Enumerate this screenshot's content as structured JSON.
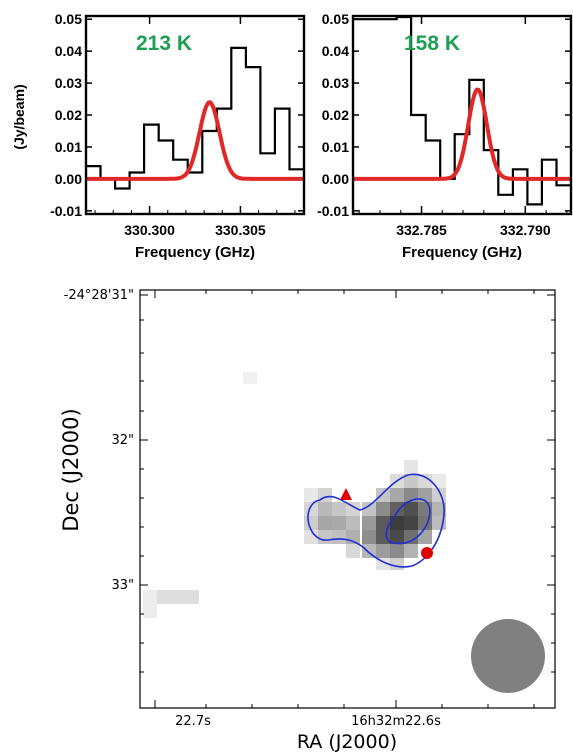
{
  "chart_data": [
    {
      "type": "line",
      "panel": "spectrum-left",
      "annotation": "213 K",
      "ylabel": "(Jy/beam)",
      "xlabel": "Frequency (GHz)",
      "xlim": [
        330.2965,
        330.3085
      ],
      "ylim": [
        -0.011,
        0.051
      ],
      "x_ticks": [
        "330.300",
        "330.305"
      ],
      "x_tick_values": [
        330.3,
        330.305
      ],
      "y_ticks": [
        "-0.01",
        "0.00",
        "0.01",
        "0.02",
        "0.03",
        "0.04",
        "0.05"
      ],
      "y_tick_values": [
        -0.01,
        0.0,
        0.01,
        0.02,
        0.03,
        0.04,
        0.05
      ],
      "series": [
        {
          "role": "observed-spectrum-steps",
          "color": "#000000",
          "x": [
            330.2965,
            330.2973,
            330.2981,
            330.2989,
            330.2997,
            330.3005,
            330.3013,
            330.3021,
            330.3029,
            330.3037,
            330.3045,
            330.3053,
            330.3061,
            330.3069,
            330.3077,
            330.3085
          ],
          "y": [
            0.004,
            0.0,
            -0.003,
            0.002,
            0.017,
            0.012,
            0.006,
            0.002,
            0.015,
            0.022,
            0.041,
            0.035,
            0.008,
            0.022,
            0.003,
            0.002
          ]
        },
        {
          "role": "gaussian-model",
          "color": "#e02828",
          "amplitude": 0.024,
          "center": 330.3033,
          "sigma": 0.00055
        }
      ]
    },
    {
      "type": "line",
      "panel": "spectrum-right",
      "annotation": "158 K",
      "xlabel": "Frequency (GHz)",
      "xlim": [
        332.7817,
        332.7922
      ],
      "ylim": [
        -0.011,
        0.051
      ],
      "x_ticks": [
        "332.785",
        "332.790"
      ],
      "x_tick_values": [
        332.785,
        332.79
      ],
      "y_ticks": [
        "-0.01",
        "0.00",
        "0.01",
        "0.02",
        "0.03",
        "0.04",
        "0.05"
      ],
      "y_tick_values": [
        -0.01,
        0.0,
        0.01,
        0.02,
        0.03,
        0.04,
        0.05
      ],
      "series": [
        {
          "role": "observed-spectrum-steps",
          "color": "#000000",
          "x": [
            332.7817,
            332.7824,
            332.7831,
            332.7838,
            332.7845,
            332.7852,
            332.7859,
            332.7866,
            332.7873,
            332.788,
            332.7887,
            332.7894,
            332.7901,
            332.7908,
            332.7915,
            332.7922
          ],
          "y": [
            0.05,
            0.05,
            0.05,
            0.051,
            0.02,
            0.012,
            0.0,
            0.014,
            0.031,
            0.009,
            -0.005,
            0.003,
            -0.008,
            0.006,
            -0.002,
            0.004
          ]
        },
        {
          "role": "gaussian-model",
          "color": "#e02828",
          "amplitude": 0.028,
          "center": 332.7877,
          "sigma": 0.00045
        }
      ]
    },
    {
      "type": "heatmap",
      "panel": "map",
      "xlabel": "RA (J2000)",
      "ylabel": "Dec (J2000)",
      "x_ticks": [
        "22.7s",
        "16h32m22.6s"
      ],
      "y_ticks": [
        "-24°28'31\"",
        "32\"",
        "33\""
      ],
      "markers": [
        {
          "shape": "triangle",
          "color": "#e00000"
        },
        {
          "shape": "circle",
          "color": "#e00000"
        }
      ],
      "contour_color": "#1d2fd6",
      "beam_color": "#808080"
    }
  ]
}
